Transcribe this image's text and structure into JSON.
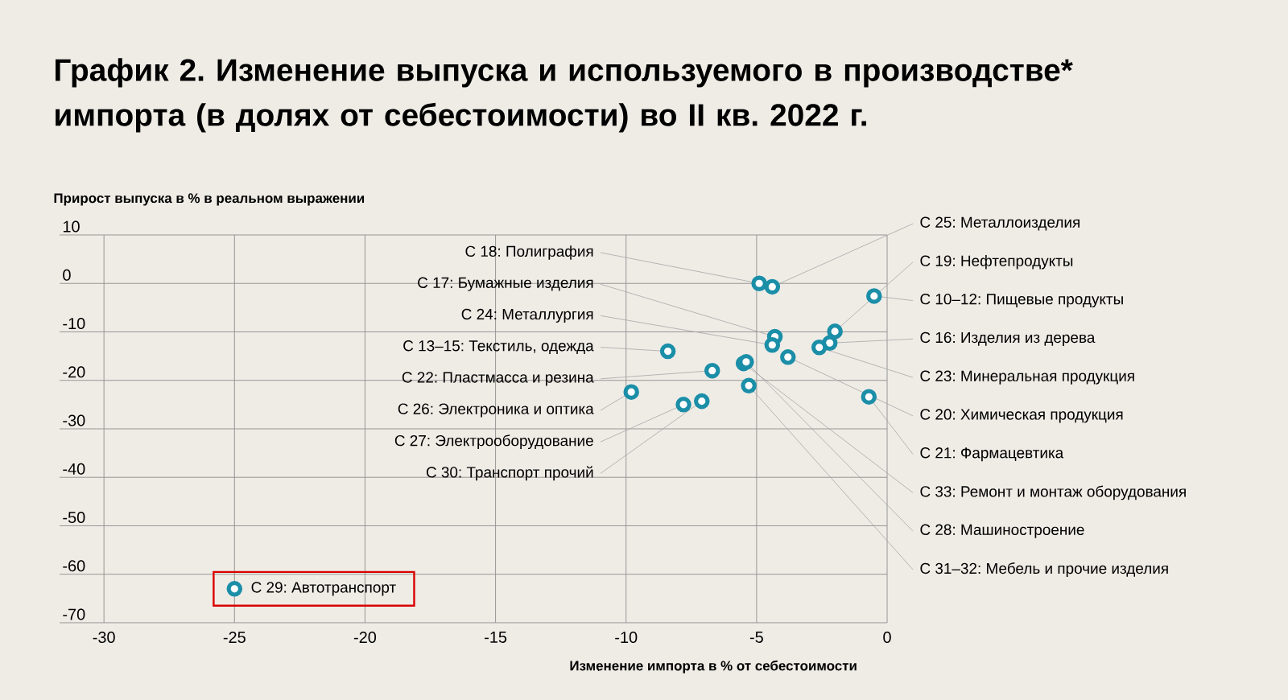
{
  "chart_data": {
    "type": "scatter",
    "title": "График 2. Изменение выпуска и используемого в производстве* импорта (в долях от себестоимости) во II кв. 2022 г.",
    "xlabel": "Изменение импорта в % от себестоимости",
    "ylabel": "Прирост выпуска в % в реальном выражении",
    "x": [
      -4.9,
      -4.3,
      -4.4,
      -8.4,
      -6.7,
      -9.8,
      -7.8,
      -7.1,
      -4.4,
      -2.0,
      -0.5,
      -2.2,
      -2.6,
      -3.8,
      -0.7,
      -5.5,
      -5.4,
      -5.3,
      -25
    ],
    "values": [
      0,
      -11,
      -12.7,
      -14,
      -18,
      -22.4,
      -25,
      -24.3,
      -0.7,
      -9.9,
      -2.6,
      -12.3,
      -13.2,
      -15.2,
      -23.4,
      -16.5,
      -16.2,
      -21.1,
      -63
    ],
    "color": "#1b8ea8",
    "marker": "circle",
    "grid": true,
    "xlim": [
      -31.7,
      0
    ],
    "ylim": [
      -70,
      10
    ],
    "xticks": [
      -30,
      -25,
      -20,
      -15,
      -10,
      -5,
      0
    ],
    "yticks": [
      -70,
      -60,
      -50,
      -40,
      -30,
      -20,
      -10,
      0,
      10
    ],
    "annotations": [
      {
        "text": "С 18: Полиграфия",
        "x": -4.9,
        "y": 0
      },
      {
        "text": "С 17: Бумажные изделия",
        "x": -4.3,
        "y": -11
      },
      {
        "text": "С 24: Металлургия",
        "x": -4.4,
        "y": -12.7
      },
      {
        "text": "С 13–15: Текстиль, одежда",
        "x": -8.4,
        "y": -14
      },
      {
        "text": "С 22: Пластмасса и резина",
        "x": -6.7,
        "y": -18
      },
      {
        "text": "С 26: Электроника и оптика",
        "x": -9.8,
        "y": -22.4
      },
      {
        "text": "С 27: Электрооборудование",
        "x": -7.8,
        "y": -25
      },
      {
        "text": "С 30: Транспорт прочий",
        "x": -7.1,
        "y": -24.3
      },
      {
        "text": "С 25: Металлоизделия",
        "x": -4.4,
        "y": -0.7
      },
      {
        "text": "С 19: Нефтепродукты",
        "x": -2.0,
        "y": -9.9
      },
      {
        "text": "С 10–12: Пищевые продукты",
        "x": -0.5,
        "y": -2.6
      },
      {
        "text": "С 16: Изделия из дерева",
        "x": -2.2,
        "y": -12.3
      },
      {
        "text": "С 23: Минеральная продукция",
        "x": -2.6,
        "y": -13.2
      },
      {
        "text": "С 20: Химическая продукция",
        "x": -3.8,
        "y": -15.2
      },
      {
        "text": "С 21: Фармацевтика",
        "x": -0.7,
        "y": -23.4
      },
      {
        "text": "С 33: Ремонт и монтаж оборудования",
        "x": -5.5,
        "y": -16.5
      },
      {
        "text": "С 28: Машиностроение",
        "x": -5.4,
        "y": -16.2
      },
      {
        "text": "С 31–32: Мебель и прочие изделия",
        "x": -5.3,
        "y": -21.1
      },
      {
        "text": "С 29: Автотранспорт",
        "x": -25,
        "y": -63
      }
    ]
  }
}
